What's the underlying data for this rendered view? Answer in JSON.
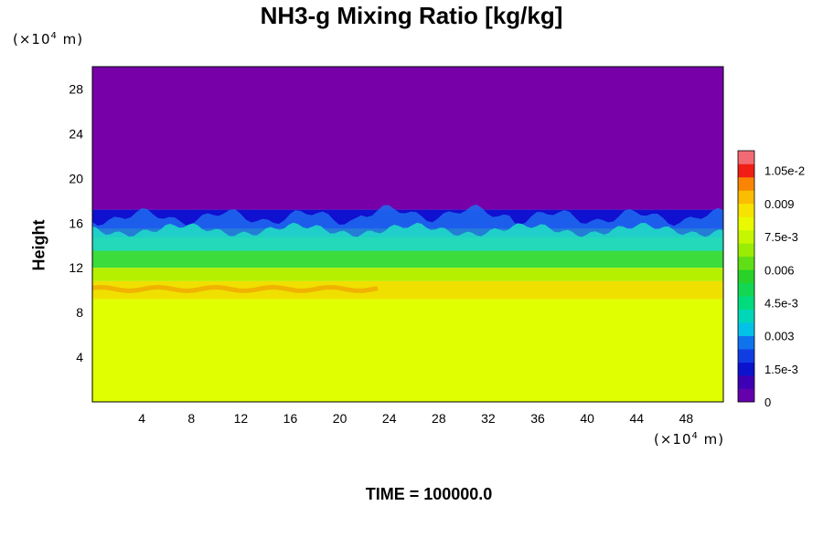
{
  "chart_data": {
    "type": "heatmap",
    "title": "NH3-g Mixing Ratio [kg/kg]",
    "ylabel": "Height",
    "x_unit": {
      "prefix": "(×10",
      "exp": "4",
      "suffix": " m)"
    },
    "y_unit": {
      "prefix": "(×10",
      "exp": "4",
      "suffix": " m)"
    },
    "xlim": [
      0,
      51
    ],
    "ylim": [
      0,
      30
    ],
    "x_ticks": [
      "4",
      "8",
      "12",
      "16",
      "20",
      "24",
      "28",
      "32",
      "36",
      "40",
      "44",
      "48"
    ],
    "y_ticks": [
      "4",
      "8",
      "12",
      "16",
      "20",
      "24",
      "28"
    ],
    "colorbar": {
      "range": [
        0,
        0.0114
      ],
      "tick_labels": [
        "0",
        "1.5e-3",
        "0.003",
        "4.5e-3",
        "0.006",
        "7.5e-3",
        "0.009",
        "1.05e-2"
      ],
      "tick_values": [
        0,
        0.0015,
        0.003,
        0.0045,
        0.006,
        0.0075,
        0.009,
        0.0105
      ],
      "level_step": 0.0006
    },
    "regions": [
      {
        "y_range": [
          17.2,
          30
        ],
        "value": 0.0,
        "color": "#7800a8"
      },
      {
        "y_range": [
          15.5,
          17.2
        ],
        "value": 0.001,
        "color": "#1010d0"
      },
      {
        "y_range": [
          12.0,
          15.5
        ],
        "value": 0.0055,
        "color": "#3cdc3c"
      },
      {
        "y_range": [
          10.8,
          12.0
        ],
        "value": 0.0075,
        "color": "#b4f000"
      },
      {
        "y_range": [
          9.2,
          10.8
        ],
        "value": 0.0085,
        "color": "#f0e000"
      },
      {
        "y_range": [
          0,
          9.2
        ],
        "value": 0.0078,
        "color": "#e0ff00"
      }
    ]
  },
  "time_label": "TIME = 100000.0"
}
